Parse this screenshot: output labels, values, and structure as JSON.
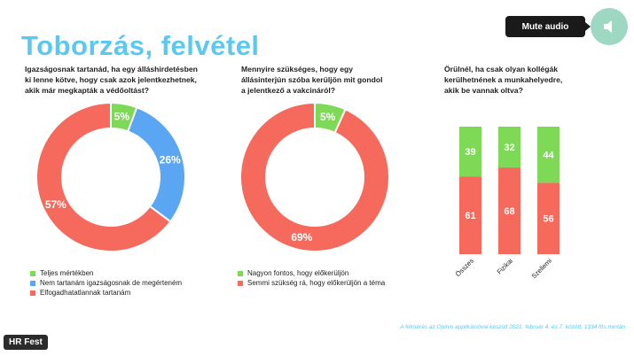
{
  "slide": {
    "title": "Toborzás, felvétel",
    "footnote": "A felmérés az Opinio applikációval készült 2021. február 4. és 7. között, 1334 fős mintán",
    "q1": {
      "lines": [
        "Igazságosnak tartanád, ha egy álláshirdetésben",
        "ki lenne kötve, hogy csak azok jelentkezhetnek,",
        "akik már megkapták a védőoltást?"
      ],
      "legend": [
        {
          "label": "Teljes mértékben",
          "color": "#7ed957"
        },
        {
          "label": "Nem tartanám igazságosnak de megérteném",
          "color": "#5aa6f2"
        },
        {
          "label": "Elfogadhatatlannak tartanám",
          "color": "#f56a5c"
        }
      ]
    },
    "q2": {
      "lines": [
        "Mennyire szükséges, hogy egy",
        "állásinterjún szóba kerüljön mit gondol",
        "a jelentkező a vakcináról?"
      ],
      "legend": [
        {
          "label": "Nagyon fontos, hogy előkerüljön",
          "color": "#7ed957"
        },
        {
          "label": "Semmi szükség rá, hogy előkerüljön a téma",
          "color": "#f56a5c"
        }
      ]
    },
    "q3": {
      "lines": [
        "Örülnél, ha csak olyan kollégák",
        "kerülhetnének a munkahelyedre,",
        "akik be vannak oltva?"
      ]
    }
  },
  "player": {
    "mute_label": "Mute audio",
    "badge": "HR Fest"
  },
  "chart_data": [
    {
      "type": "pie",
      "variant": "donut",
      "title": "Igazságosnak tartanád, ha egy álláshirdetésben ki lenne kötve, hogy csak azok jelentkezhetnek, akik már megkapták a védőoltást?",
      "categories": [
        "Teljes mértékben",
        "Nem tartanám igazságosnak de megérteném",
        "Elfogadhatatlannak tartanám"
      ],
      "values": [
        5,
        26,
        57
      ],
      "labels": [
        "5%",
        "26%",
        "57%"
      ],
      "colors": [
        "#7ed957",
        "#5aa6f2",
        "#f56a5c"
      ],
      "legend": "bottom"
    },
    {
      "type": "pie",
      "variant": "donut",
      "title": "Mennyire szükséges, hogy egy állásinterjún szóba kerüljön mit gondol a jelentkező a vakcináról?",
      "categories": [
        "Nagyon fontos, hogy előkerüljön",
        "Semmi szükség rá, hogy előkerüljön a téma"
      ],
      "values": [
        5,
        69
      ],
      "labels": [
        "5%",
        "69%"
      ],
      "colors": [
        "#7ed957",
        "#f56a5c"
      ],
      "legend": "bottom"
    },
    {
      "type": "bar",
      "variant": "stacked",
      "title": "Örülnél, ha csak olyan kollégák kerülhetnének a munkahelyedre, akik be vannak oltva?",
      "categories": [
        "Összes",
        "Fizikai",
        "Szellemi"
      ],
      "series": [
        {
          "values": [
            61,
            68,
            56
          ],
          "color": "#f56a5c"
        },
        {
          "values": [
            39,
            32,
            44
          ],
          "color": "#7ed957"
        }
      ],
      "ylim": [
        0,
        100
      ],
      "legend": "none"
    }
  ]
}
